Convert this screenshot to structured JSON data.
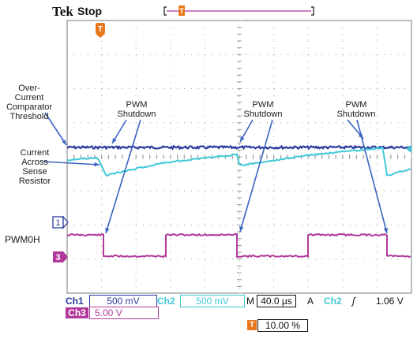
{
  "header": {
    "brand": "Tek",
    "run_state": "Stop",
    "trigger_marker": "T"
  },
  "annotations": {
    "threshold_label": [
      "Over-",
      "Current",
      "Comparator",
      "Threshold"
    ],
    "sense_label": [
      "Current",
      "Across",
      "Sense",
      "Resistor"
    ],
    "pwm_label": "PWM0H",
    "shutdown": [
      "PWM",
      "Shutdown"
    ]
  },
  "markers": {
    "ch1": "1",
    "ch3": "3",
    "trigger": "T"
  },
  "readout": {
    "ch1_name": "Ch1",
    "ch1_scale": "500 mV",
    "ch2_name": "Ch2",
    "ch2_scale": "500 mV",
    "ch3_name": "Ch3",
    "ch3_scale": "5.00 V",
    "timebase_prefix": "M",
    "timebase": "40.0 µs",
    "trigger_mode": "A",
    "trigger_source": "Ch2",
    "trigger_slope_icon": "rising-edge-icon",
    "trigger_slope_glyph": "ʃ",
    "trigger_level": "1.06 V",
    "trigger_position": "10.00 %"
  },
  "colors": {
    "ch1": "#2b3a9e",
    "ch2": "#3ec9d6",
    "ch3": "#b0399b",
    "trigger": "#e9781d",
    "grid": "#9a9a9a",
    "arrow": "#3b64c0"
  }
}
